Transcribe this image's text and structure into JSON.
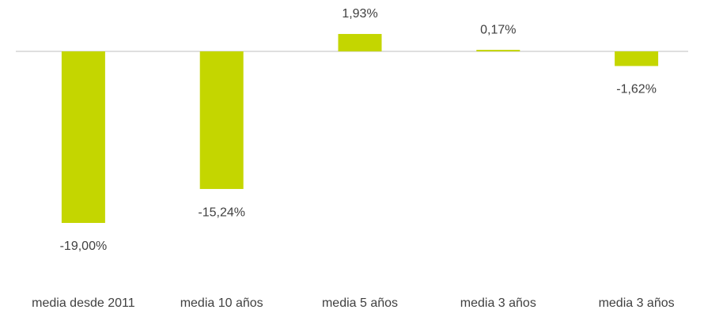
{
  "chart_data": {
    "type": "bar",
    "categories": [
      "media desde 2011",
      "media 10 años",
      "media 5 años",
      "media 3 años",
      "media 3 años"
    ],
    "values": [
      -19.0,
      -15.24,
      1.93,
      0.17,
      -1.62
    ],
    "value_labels": [
      "-19,00%",
      "-15,24%",
      "1,93%",
      "0,17%",
      "-1,62%"
    ],
    "color": "#c4d600"
  }
}
